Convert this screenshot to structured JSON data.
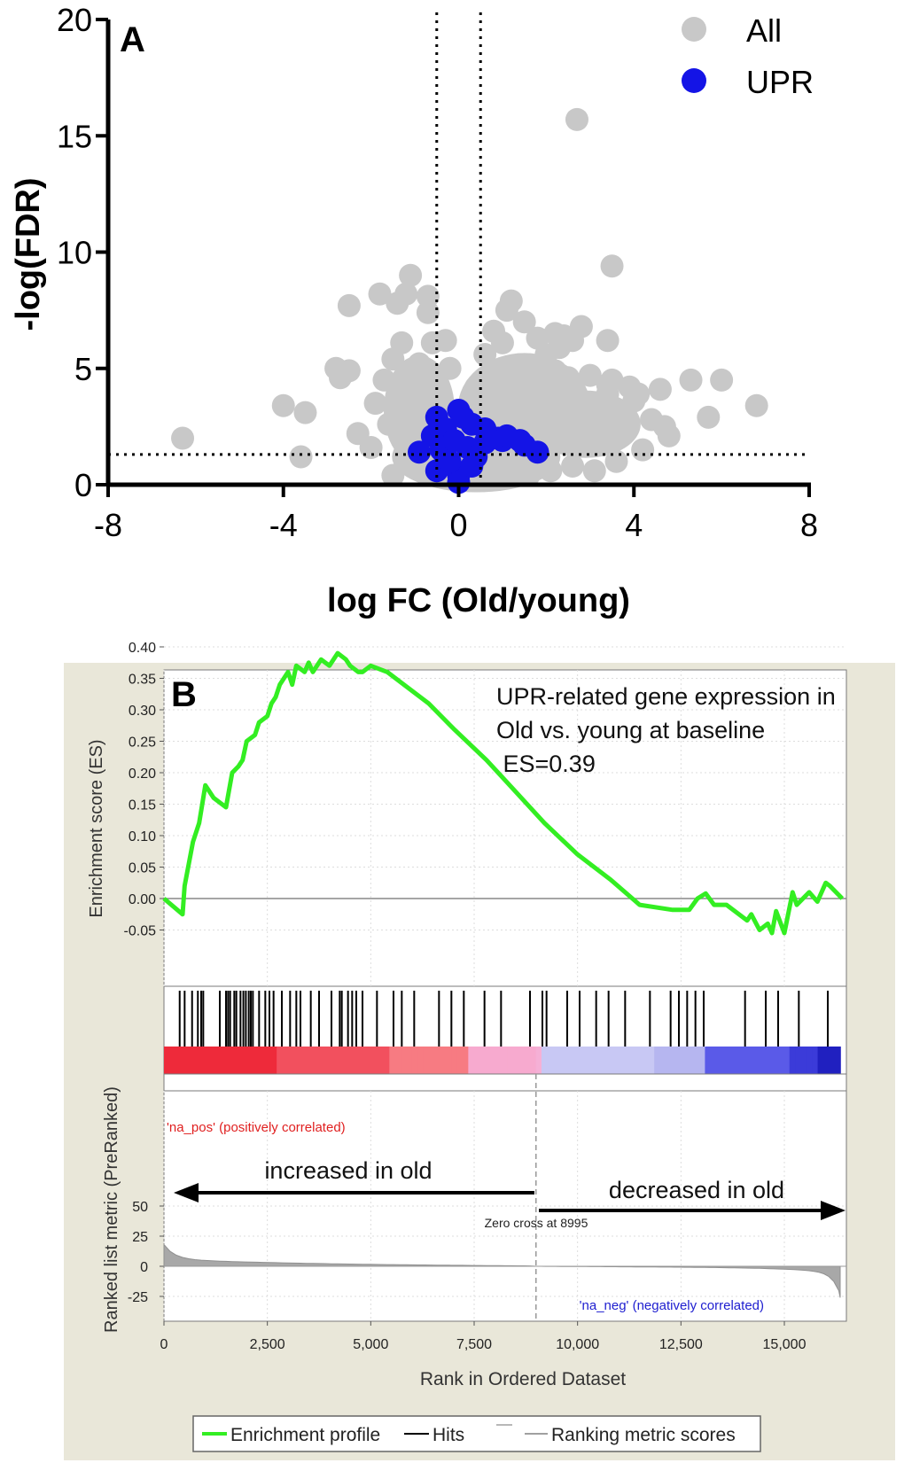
{
  "chart_data": [
    {
      "type": "scatter",
      "panel_label": "A",
      "xlabel": "log FC (Old/young)",
      "ylabel": "-log(FDR)",
      "xlim": [
        -8,
        8
      ],
      "ylim": [
        0,
        20
      ],
      "xticks": [
        "-8",
        "-4",
        "0",
        "4",
        "8"
      ],
      "yticks": [
        "0",
        "5",
        "10",
        "15",
        "20"
      ],
      "reference_lines": {
        "x": [
          -0.5,
          0.5
        ],
        "y": [
          1.3
        ]
      },
      "legend": [
        {
          "label": "All",
          "color": "#c8c8c8"
        },
        {
          "label": "UPR",
          "color": "#1414e6"
        }
      ],
      "series": [
        {
          "name": "All",
          "color": "#c8c8c8",
          "points": [
            [
              -6.3,
              2.0
            ],
            [
              -4.0,
              3.4
            ],
            [
              -3.5,
              3.1
            ],
            [
              -3.6,
              1.2
            ],
            [
              -2.8,
              5.0
            ],
            [
              -2.7,
              4.6
            ],
            [
              -2.5,
              4.9
            ],
            [
              -2.5,
              7.7
            ],
            [
              -2.3,
              2.2
            ],
            [
              -1.9,
              3.5
            ],
            [
              -1.8,
              8.2
            ],
            [
              -1.4,
              7.8
            ],
            [
              -1.2,
              8.2
            ],
            [
              -1.1,
              9.0
            ],
            [
              -0.7,
              8.1
            ],
            [
              -0.7,
              7.4
            ],
            [
              -1.3,
              6.1
            ],
            [
              -1.5,
              5.4
            ],
            [
              -0.9,
              5.2
            ],
            [
              -1.7,
              4.5
            ],
            [
              -1.2,
              4.0
            ],
            [
              -0.6,
              6.1
            ],
            [
              -0.3,
              6.2
            ],
            [
              -1.6,
              2.6
            ],
            [
              -2.0,
              1.6
            ],
            [
              -1.0,
              1.2
            ],
            [
              -1.5,
              0.4
            ],
            [
              -0.8,
              0.6
            ],
            [
              -0.4,
              0.8
            ],
            [
              0.3,
              0.3
            ],
            [
              0.8,
              0.5
            ],
            [
              1.2,
              0.7
            ],
            [
              1.6,
              0.4
            ],
            [
              2.1,
              0.6
            ],
            [
              2.6,
              0.8
            ],
            [
              3.1,
              0.6
            ],
            [
              3.6,
              1.0
            ],
            [
              4.2,
              1.5
            ],
            [
              4.8,
              2.1
            ],
            [
              4.4,
              2.8
            ],
            [
              4.0,
              3.6
            ],
            [
              3.4,
              3.9
            ],
            [
              2.8,
              3.2
            ],
            [
              2.3,
              2.7
            ],
            [
              1.4,
              2.4
            ],
            [
              0.8,
              2.9
            ],
            [
              0.6,
              3.6
            ],
            [
              0.4,
              4.2
            ],
            [
              0.6,
              5.6
            ],
            [
              0.8,
              6.6
            ],
            [
              1.0,
              6.1
            ],
            [
              1.2,
              7.9
            ],
            [
              1.1,
              7.5
            ],
            [
              1.5,
              7.0
            ],
            [
              1.8,
              6.3
            ],
            [
              2.0,
              5.6
            ],
            [
              2.2,
              6.5
            ],
            [
              2.3,
              5.9
            ],
            [
              2.4,
              6.4
            ],
            [
              2.8,
              6.8
            ],
            [
              2.6,
              6.2
            ],
            [
              2.2,
              4.9
            ],
            [
              2.5,
              4.6
            ],
            [
              3.0,
              4.7
            ],
            [
              3.4,
              4.3
            ],
            [
              3.5,
              4.5
            ],
            [
              3.9,
              4.2
            ],
            [
              4.1,
              3.9
            ],
            [
              4.6,
              4.1
            ],
            [
              5.3,
              4.5
            ],
            [
              6.0,
              4.5
            ],
            [
              5.7,
              2.9
            ],
            [
              6.8,
              3.4
            ],
            [
              4.7,
              2.5
            ],
            [
              3.4,
              6.2
            ],
            [
              3.5,
              9.4
            ],
            [
              2.7,
              15.7
            ],
            [
              1.0,
              4.7
            ],
            [
              -0.2,
              5.0
            ],
            [
              -0.5,
              3.5
            ],
            [
              1.6,
              3.5
            ],
            [
              1.9,
              2.7
            ],
            [
              1.3,
              1.6
            ],
            [
              0.5,
              1.0
            ],
            [
              -0.3,
              1.8
            ],
            [
              0.2,
              2.3
            ],
            [
              1.1,
              4.0
            ],
            [
              1.7,
              4.4
            ]
          ]
        },
        {
          "name": "UPR",
          "color": "#1414e6",
          "points": [
            [
              0.0,
              3.2
            ],
            [
              -0.5,
              2.9
            ],
            [
              -0.3,
              2.4
            ],
            [
              0.3,
              2.6
            ],
            [
              0.6,
              2.4
            ],
            [
              -0.6,
              2.1
            ],
            [
              -0.9,
              1.4
            ],
            [
              -0.4,
              1.5
            ],
            [
              -0.1,
              1.9
            ],
            [
              0.2,
              1.6
            ],
            [
              0.6,
              1.8
            ],
            [
              0.9,
              2.0
            ],
            [
              1.0,
              1.9
            ],
            [
              1.1,
              2.1
            ],
            [
              1.4,
              1.9
            ],
            [
              1.5,
              1.7
            ],
            [
              1.8,
              1.4
            ],
            [
              0.4,
              1.2
            ],
            [
              -0.5,
              0.6
            ],
            [
              0.0,
              0.4
            ],
            [
              0.0,
              0.1
            ],
            [
              0.3,
              0.8
            ],
            [
              -0.2,
              1.0
            ],
            [
              0.1,
              2.9
            ]
          ]
        }
      ]
    },
    {
      "type": "line",
      "panel_label": "B",
      "annotation": [
        "UPR-related gene expression in",
        "Old vs. young at baseline",
        " ES=0.39"
      ],
      "ylabel": "Enrichment score (ES)",
      "ylabel_bottom": "Ranked list metric (PreRanked)",
      "xlabel": "Rank in Ordered Dataset",
      "xlim": [
        0,
        16500
      ],
      "ylim": [
        -0.07,
        0.41
      ],
      "yticks": [
        "0.40",
        "0.35",
        "0.30",
        "0.25",
        "0.20",
        "0.15",
        "0.10",
        "0.05",
        "0.00",
        "-0.05"
      ],
      "xticks": [
        "0",
        "2,500",
        "5,000",
        "7,500",
        "10,000",
        "12,500",
        "15,000"
      ],
      "metric_yticks": [
        "50",
        "25",
        "0",
        "-25"
      ],
      "metric_ylim": [
        -30,
        55
      ],
      "zero_cross_label": "Zero cross at 8995",
      "zero_cross": 8995,
      "pos_label": "'na_pos' (positively correlated)",
      "neg_label": "'na_neg' (negatively correlated)",
      "arrow_left_label": "increased in old",
      "arrow_right_label": "decreased in old",
      "legend": [
        {
          "label": "Enrichment profile",
          "color": "#33ee22"
        },
        {
          "label": "Hits",
          "color": "#000000"
        },
        {
          "label": "Ranking metric scores",
          "color": "#a0a0a0"
        }
      ],
      "series": [
        {
          "name": "Enrichment profile",
          "x": [
            0,
            450,
            500,
            700,
            850,
            1000,
            1200,
            1500,
            1650,
            1800,
            1900,
            2000,
            2200,
            2300,
            2500,
            2600,
            2700,
            2800,
            3000,
            3100,
            3200,
            3400,
            3500,
            3600,
            3800,
            4000,
            4200,
            4400,
            4500,
            4700,
            4800,
            5000,
            5400,
            5800,
            6400,
            7000,
            7800,
            8500,
            9200,
            10000,
            10800,
            11500,
            12300,
            12700,
            12900,
            13100,
            13300,
            13600,
            14100,
            14200,
            14400,
            14600,
            14700,
            14800,
            15000,
            15200,
            15300,
            15600,
            15800,
            16000,
            16100,
            16400
          ],
          "y": [
            0.0,
            -0.025,
            0.02,
            0.09,
            0.12,
            0.18,
            0.16,
            0.145,
            0.2,
            0.21,
            0.22,
            0.25,
            0.26,
            0.28,
            0.29,
            0.31,
            0.32,
            0.34,
            0.36,
            0.34,
            0.37,
            0.36,
            0.375,
            0.36,
            0.38,
            0.37,
            0.39,
            0.38,
            0.37,
            0.36,
            0.36,
            0.37,
            0.36,
            0.34,
            0.31,
            0.27,
            0.22,
            0.17,
            0.12,
            0.07,
            0.03,
            -0.01,
            -0.018,
            -0.018,
            0.0,
            0.008,
            -0.01,
            -0.01,
            -0.035,
            -0.025,
            -0.05,
            -0.04,
            -0.055,
            -0.02,
            -0.055,
            0.01,
            -0.01,
            0.01,
            -0.005,
            0.025,
            0.02,
            0.0
          ]
        }
      ],
      "hits": [
        380,
        500,
        680,
        820,
        900,
        950,
        1350,
        1500,
        1550,
        1600,
        1700,
        1750,
        1850,
        1920,
        1980,
        2050,
        2100,
        2150,
        2300,
        2450,
        2550,
        2650,
        2850,
        3050,
        3200,
        3300,
        3550,
        3750,
        4050,
        4250,
        4300,
        4450,
        4550,
        4650,
        4800,
        5150,
        5550,
        5750,
        6050,
        6650,
        6950,
        7250,
        7750,
        8150,
        8850,
        9150,
        9250,
        9750,
        10050,
        10450,
        10750,
        11150,
        11750,
        12250,
        12450,
        12650,
        12850,
        13050,
        14050,
        14550,
        14850,
        15350,
        16050
      ]
    }
  ]
}
